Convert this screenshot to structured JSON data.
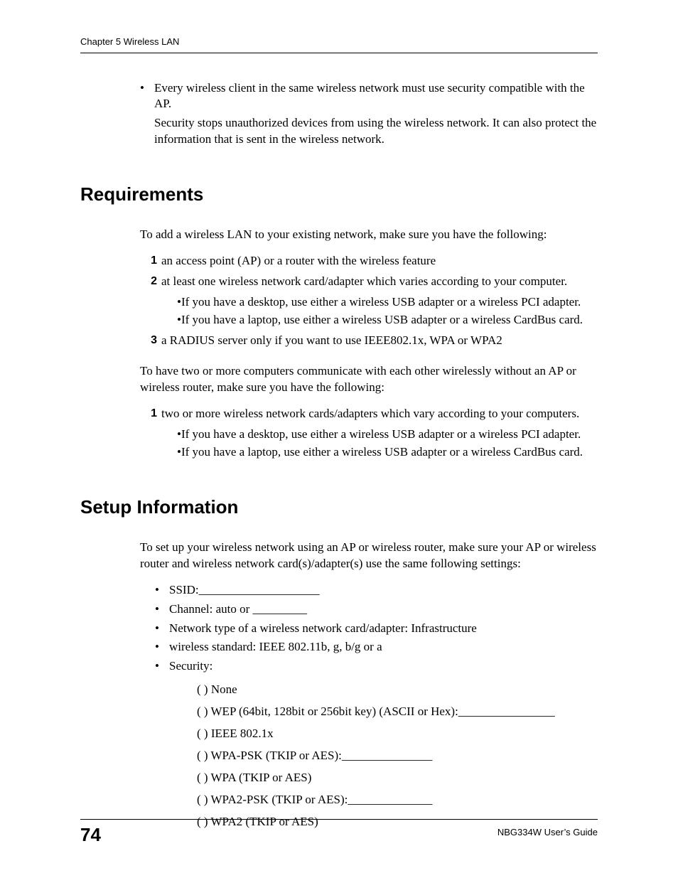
{
  "header": {
    "running_head": "Chapter 5 Wireless LAN"
  },
  "intro": {
    "bullet": "Every wireless client in the same wireless network must use security compatible with the AP.",
    "followup": "Security stops unauthorized devices from using the wireless network. It can also protect the information that is sent in the wireless network."
  },
  "requirements": {
    "heading": "Requirements",
    "lead": "To add a wireless LAN to your existing network, make sure you have the following:",
    "items": [
      {
        "n": "1",
        "text": "an access point (AP) or a router with the wireless feature"
      },
      {
        "n": "2",
        "text": "at least one wireless network card/adapter which varies according to your computer.",
        "subs": [
          "If you have a desktop, use either a wireless USB adapter or a wireless PCI adapter.",
          "If you have a laptop, use either a wireless USB adapter or a wireless CardBus card."
        ]
      },
      {
        "n": "3",
        "text": "a RADIUS server only if you want to use IEEE802.1x, WPA or WPA2"
      }
    ],
    "lead2": "To have two or more computers communicate with each other wirelessly without an AP or wireless router, make sure you have the following:",
    "items2": [
      {
        "n": "1",
        "text": "two or more wireless network cards/adapters which vary according to your computers.",
        "subs": [
          "If you have a desktop, use either a wireless USB adapter or a wireless PCI adapter.",
          "If you have a laptop, use either a wireless USB adapter or a wireless CardBus card."
        ]
      }
    ]
  },
  "setup": {
    "heading": "Setup Information",
    "lead": "To set up your wireless network using an AP or wireless router, make sure your AP or wireless router and wireless network card(s)/adapter(s) use the same following settings:",
    "bullets": [
      "SSID:____________________",
      "Channel: auto or _________",
      "Network type of a wireless network card/adapter: Infrastructure",
      "wireless standard: IEEE 802.11b, g, b/g or a",
      "Security:"
    ],
    "security_options": [
      "(  ) None",
      "(  ) WEP (64bit, 128bit or 256bit key) (ASCII or Hex):________________",
      "(  ) IEEE 802.1x",
      "(  ) WPA-PSK (TKIP or AES):_______________",
      "(  ) WPA (TKIP or AES)",
      "(  ) WPA2-PSK (TKIP or AES):______________",
      "(  ) WPA2 (TKIP or AES)"
    ]
  },
  "footer": {
    "page": "74",
    "guide": "NBG334W User’s Guide"
  }
}
